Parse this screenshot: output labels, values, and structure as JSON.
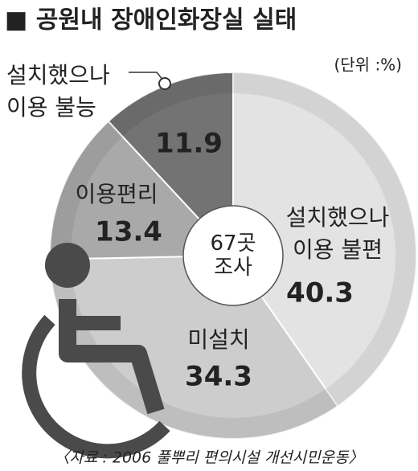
{
  "chart_data": {
    "type": "pie",
    "title": "■ 공원내 장애인화장실 실태",
    "unit": "(단위 :%)",
    "center_label": "67곳 조사",
    "categories": [
      "설치했으나 이용 불편",
      "미설치",
      "이용편리",
      "설치했으나 이용 불능"
    ],
    "values": [
      40.3,
      34.3,
      13.4,
      11.9
    ],
    "colors": [
      "#e3e3e3",
      "#cdcdcd",
      "#a9a9a9",
      "#737373"
    ],
    "source": "〈자료 : 2006 풀뿌리 편의시설 개선시민운동〉"
  }
}
